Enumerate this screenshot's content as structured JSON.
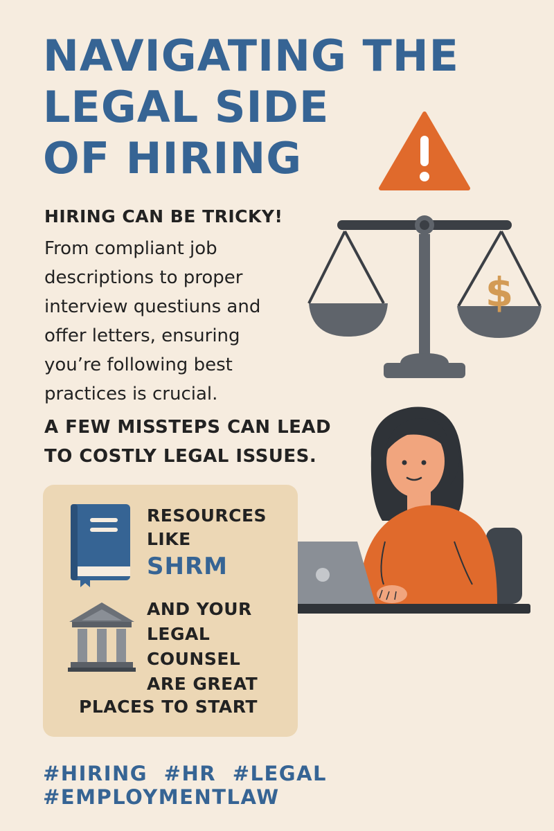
{
  "title": {
    "line1": "NAVIGATING THE",
    "line2": "LEGAL SIDE",
    "line3": "OF HIRING"
  },
  "intro": {
    "heading": "HIRING CAN BE TRICKY!",
    "lines": [
      "From compliant job",
      "descriptions to proper",
      "interview questiuns and",
      "offer letters, ensuring",
      "you’re following best",
      "practices is crucial."
    ]
  },
  "warning": {
    "line1": "A FEW MISSTEPS CAN LEAD",
    "line2": "TO COSTLY LEGAL ISSUES."
  },
  "resources": {
    "line1": "RESOURCES",
    "line2": "LIKE",
    "shrm": "SHRM",
    "counsel": [
      "AND YOUR",
      "LEGAL",
      "COUNSEL",
      "ARE GREAT"
    ],
    "last": "PLACES TO START"
  },
  "hashtags": [
    "#HIRING",
    "#HR",
    "#LEGAL",
    "#EMPLOYMENTLAW"
  ],
  "icons": {
    "warning": "warning-triangle-icon",
    "scale": "scale-of-justice-icon",
    "dollar_glyph": "$",
    "book": "book-icon",
    "building": "courthouse-icon"
  },
  "colors": {
    "background": "#f6ecdf",
    "title_blue": "#366494",
    "accent_orange": "#e06a2c",
    "card": "#ecd7b5",
    "gold": "#d39b55",
    "gray": "#5a5f66"
  }
}
